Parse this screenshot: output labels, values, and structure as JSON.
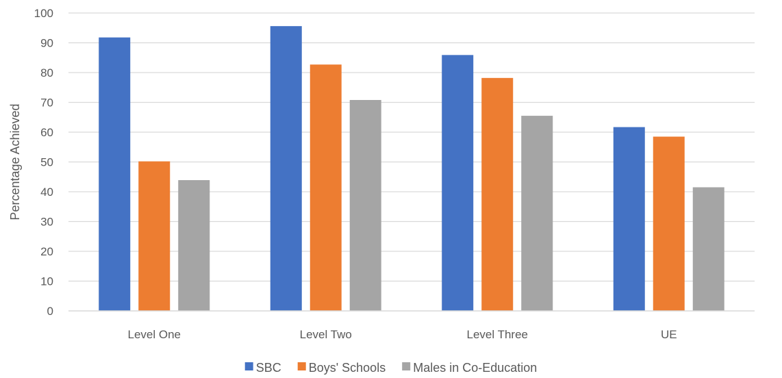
{
  "chart_data": {
    "type": "bar",
    "title": "",
    "xlabel": "",
    "ylabel": "Percentage Achieved",
    "ylim": [
      0,
      100
    ],
    "yticks": [
      0,
      10,
      20,
      30,
      40,
      50,
      60,
      70,
      80,
      90,
      100
    ],
    "grid": true,
    "legend_position": "bottom",
    "categories": [
      "Level One",
      "Level Two",
      "Level Three",
      "UE"
    ],
    "series": [
      {
        "name": "SBC",
        "color": "#4472C4",
        "values": [
          91.8,
          95.6,
          85.9,
          61.7
        ]
      },
      {
        "name": "Boys' Schools",
        "color": "#ED7D31",
        "values": [
          50.2,
          82.7,
          78.2,
          58.5
        ]
      },
      {
        "name": "Males in Co-Education",
        "color": "#A5A5A5",
        "values": [
          43.9,
          70.8,
          65.5,
          41.5
        ]
      }
    ]
  }
}
